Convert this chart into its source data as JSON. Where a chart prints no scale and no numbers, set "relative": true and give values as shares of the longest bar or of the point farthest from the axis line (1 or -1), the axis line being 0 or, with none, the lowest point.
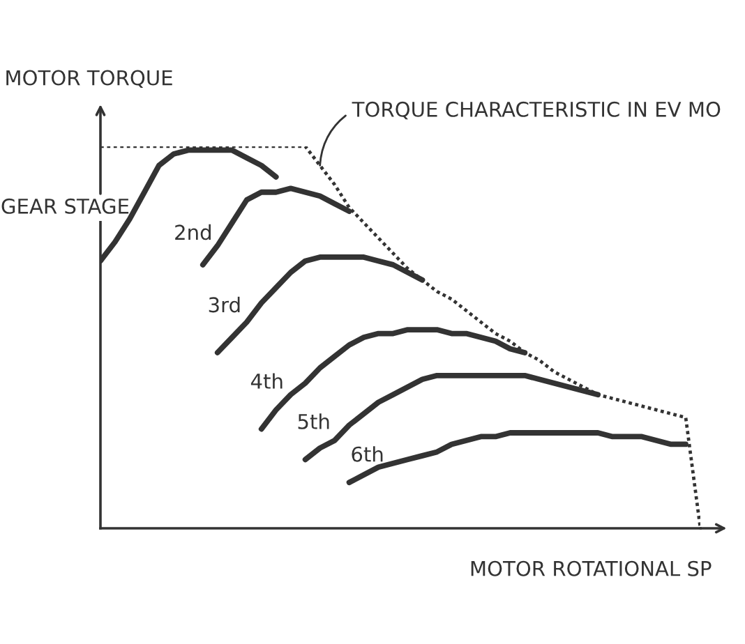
{
  "chart_data": {
    "type": "line",
    "ylabel": "MOTOR TORQUE",
    "xlabel": "MOTOR ROTATIONAL SP",
    "relative": true,
    "legend": false,
    "marker": "none",
    "categories": [
      null,
      null,
      null,
      null,
      null,
      null,
      null,
      null,
      null,
      null,
      null,
      null,
      null,
      null,
      null,
      null,
      null,
      null,
      null,
      null,
      null,
      null,
      null,
      null,
      null,
      null,
      null,
      null,
      null,
      null,
      null,
      null,
      null,
      null,
      null,
      null,
      null,
      null,
      null,
      null,
      null,
      null
    ],
    "series": [
      {
        "name": "TORQUE CHARACTERISTIC IN EV MO",
        "color": "#333333",
        "line_style": "dotted",
        "values": [
          1.0,
          1.0,
          1.0,
          1.0,
          1.0,
          1.0,
          1.0,
          1.0,
          1.0,
          1.0,
          1.0,
          1.0,
          1.0,
          1.0,
          1.0,
          0.95,
          0.9,
          0.84,
          0.8,
          0.76,
          0.72,
          0.68,
          0.65,
          0.62,
          0.6,
          0.57,
          0.54,
          0.51,
          0.49,
          0.46,
          0.44,
          0.41,
          0.39,
          0.37,
          0.35,
          0.34,
          0.33,
          0.32,
          0.31,
          0.3,
          0.29,
          0
        ]
      },
      {
        "name": "GEAR STAGE",
        "color": "#333333",
        "line_style": "solid",
        "values": [
          0.7,
          0.75,
          0.81,
          0.88,
          0.95,
          0.98,
          0.99,
          0.99,
          0.99,
          0.99,
          0.97,
          0.95,
          0.92,
          null,
          null,
          null,
          null,
          null,
          null,
          null,
          null,
          null,
          null,
          null,
          null,
          null,
          null,
          null,
          null,
          null,
          null,
          null,
          null,
          null,
          null,
          null,
          null,
          null,
          null,
          null,
          null,
          null
        ]
      },
      {
        "name": "2nd",
        "color": "#333333",
        "line_style": "solid",
        "values": [
          null,
          null,
          null,
          null,
          null,
          null,
          null,
          0.69,
          0.74,
          0.8,
          0.86,
          0.88,
          0.88,
          0.89,
          0.88,
          0.87,
          0.85,
          0.83,
          null,
          null,
          null,
          null,
          null,
          null,
          null,
          null,
          null,
          null,
          null,
          null,
          null,
          null,
          null,
          null,
          null,
          null,
          null,
          null,
          null,
          null,
          null,
          null
        ]
      },
      {
        "name": "3rd",
        "color": "#333333",
        "line_style": "solid",
        "values": [
          null,
          null,
          null,
          null,
          null,
          null,
          null,
          null,
          0.46,
          0.5,
          0.54,
          0.59,
          0.63,
          0.67,
          0.7,
          0.71,
          0.71,
          0.71,
          0.71,
          0.7,
          0.69,
          0.67,
          0.65,
          null,
          null,
          null,
          null,
          null,
          null,
          null,
          null,
          null,
          null,
          null,
          null,
          null,
          null,
          null,
          null,
          null,
          null,
          null
        ]
      },
      {
        "name": "4th",
        "color": "#333333",
        "line_style": "solid",
        "values": [
          null,
          null,
          null,
          null,
          null,
          null,
          null,
          null,
          null,
          null,
          null,
          0.26,
          0.31,
          0.35,
          0.38,
          0.42,
          0.45,
          0.48,
          0.5,
          0.51,
          0.51,
          0.52,
          0.52,
          0.52,
          0.51,
          0.51,
          0.5,
          0.49,
          0.47,
          0.46,
          null,
          null,
          null,
          null,
          null,
          null,
          null,
          null,
          null,
          null,
          null,
          null
        ]
      },
      {
        "name": "5th",
        "color": "#333333",
        "line_style": "solid",
        "values": [
          null,
          null,
          null,
          null,
          null,
          null,
          null,
          null,
          null,
          null,
          null,
          null,
          null,
          null,
          0.18,
          0.21,
          0.23,
          0.27,
          0.3,
          0.33,
          0.35,
          0.37,
          0.39,
          0.4,
          0.4,
          0.4,
          0.4,
          0.4,
          0.4,
          0.4,
          0.39,
          0.38,
          0.37,
          0.36,
          0.35,
          null,
          null,
          null,
          null,
          null,
          null,
          null
        ]
      },
      {
        "name": "6th",
        "color": "#333333",
        "line_style": "solid",
        "values": [
          null,
          null,
          null,
          null,
          null,
          null,
          null,
          null,
          null,
          null,
          null,
          null,
          null,
          null,
          null,
          null,
          null,
          0.12,
          0.14,
          0.16,
          0.17,
          0.18,
          0.19,
          0.2,
          0.22,
          0.23,
          0.24,
          0.24,
          0.25,
          0.25,
          0.25,
          0.25,
          0.25,
          0.25,
          0.25,
          0.24,
          0.24,
          0.24,
          0.23,
          0.22,
          0.22,
          null
        ]
      }
    ]
  }
}
